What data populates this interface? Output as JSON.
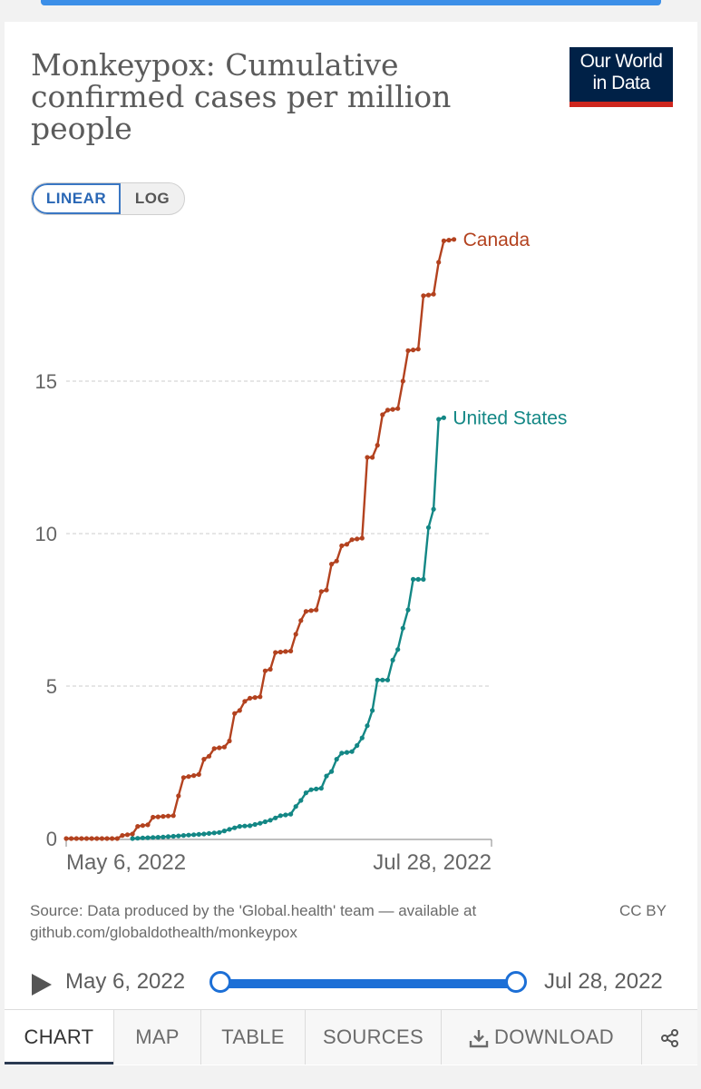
{
  "chart_title": "Monkeypox: Cumulative confirmed cases per million people",
  "logo": {
    "line1": "Our World",
    "line2": "in Data"
  },
  "scale_toggle": {
    "linear_label": "LINEAR",
    "log_label": "LOG",
    "selected": "LINEAR"
  },
  "source_text": "Source: Data produced by the 'Global.health' team — available at github.com/globaldothealth/monkeypox",
  "license": "CC BY",
  "timeline": {
    "start_label": "May 6, 2022",
    "end_label": "Jul 28, 2022",
    "play_icon": "play-icon"
  },
  "tabs": {
    "chart": "CHART",
    "map": "MAP",
    "table": "TABLE",
    "sources": "SOURCES",
    "download": "DOWNLOAD",
    "download_icon": "download-icon",
    "share_icon": "share-icon"
  },
  "colors": {
    "Canada": "#b3421f",
    "United States": "#138785",
    "toggle_accent": "#3a77c3",
    "timeline_accent": "#1c6fd6"
  },
  "chart_data": {
    "type": "line",
    "title": "Monkeypox: Cumulative confirmed cases per million people",
    "xlabel": "",
    "ylabel": "",
    "x_tick_labels": [
      "May 6, 2022",
      "Jul 28, 2022"
    ],
    "y_ticks": [
      0,
      5,
      10,
      15
    ],
    "ylim": [
      0,
      19.5
    ],
    "xlim_days": [
      0,
      83
    ],
    "grid": "horizontal dashed",
    "legend": "inline labels at line ends",
    "series": [
      {
        "name": "Canada",
        "points": [
          [
            0,
            0
          ],
          [
            10,
            0
          ],
          [
            11,
            0.1
          ],
          [
            13,
            0.15
          ],
          [
            14,
            0.4
          ],
          [
            16,
            0.45
          ],
          [
            17,
            0.7
          ],
          [
            21,
            0.75
          ],
          [
            22,
            1.4
          ],
          [
            23,
            2.0
          ],
          [
            26,
            2.1
          ],
          [
            27,
            2.6
          ],
          [
            28,
            2.7
          ],
          [
            29,
            2.95
          ],
          [
            31,
            3.0
          ],
          [
            32,
            3.2
          ],
          [
            33,
            4.1
          ],
          [
            34,
            4.2
          ],
          [
            35,
            4.5
          ],
          [
            36,
            4.6
          ],
          [
            38,
            4.65
          ],
          [
            39,
            5.5
          ],
          [
            40,
            5.55
          ],
          [
            41,
            6.1
          ],
          [
            44,
            6.15
          ],
          [
            45,
            6.7
          ],
          [
            46,
            7.15
          ],
          [
            47,
            7.45
          ],
          [
            49,
            7.5
          ],
          [
            50,
            8.1
          ],
          [
            51,
            8.15
          ],
          [
            52,
            9.0
          ],
          [
            53,
            9.1
          ],
          [
            54,
            9.6
          ],
          [
            55,
            9.65
          ],
          [
            56,
            9.8
          ],
          [
            58,
            9.85
          ],
          [
            59,
            12.5
          ],
          [
            60,
            12.5
          ],
          [
            61,
            12.9
          ],
          [
            62,
            13.9
          ],
          [
            63,
            14.05
          ],
          [
            65,
            14.1
          ],
          [
            66,
            15.0
          ],
          [
            67,
            16.0
          ],
          [
            69,
            16.05
          ],
          [
            70,
            17.8
          ],
          [
            72,
            17.85
          ],
          [
            73,
            18.9
          ],
          [
            74,
            19.6
          ],
          [
            76,
            19.65
          ]
        ]
      },
      {
        "name": "United States",
        "points": [
          [
            13,
            0
          ],
          [
            15,
            0.02
          ],
          [
            19,
            0.05
          ],
          [
            23,
            0.1
          ],
          [
            27,
            0.15
          ],
          [
            30,
            0.2
          ],
          [
            32,
            0.3
          ],
          [
            34,
            0.4
          ],
          [
            36,
            0.42
          ],
          [
            38,
            0.5
          ],
          [
            40,
            0.6
          ],
          [
            42,
            0.75
          ],
          [
            44,
            0.8
          ],
          [
            45,
            1.05
          ],
          [
            46,
            1.25
          ],
          [
            47,
            1.5
          ],
          [
            48,
            1.6
          ],
          [
            50,
            1.65
          ],
          [
            51,
            2.05
          ],
          [
            52,
            2.2
          ],
          [
            53,
            2.6
          ],
          [
            54,
            2.8
          ],
          [
            56,
            2.85
          ],
          [
            57,
            3.05
          ],
          [
            58,
            3.3
          ],
          [
            59,
            3.7
          ],
          [
            60,
            4.2
          ],
          [
            61,
            5.2
          ],
          [
            63,
            5.2
          ],
          [
            64,
            5.85
          ],
          [
            65,
            6.2
          ],
          [
            66,
            6.9
          ],
          [
            67,
            7.5
          ],
          [
            68,
            8.5
          ],
          [
            70,
            8.5
          ],
          [
            71,
            10.2
          ],
          [
            72,
            10.8
          ],
          [
            73,
            13.75
          ],
          [
            74,
            13.8
          ]
        ]
      }
    ]
  }
}
